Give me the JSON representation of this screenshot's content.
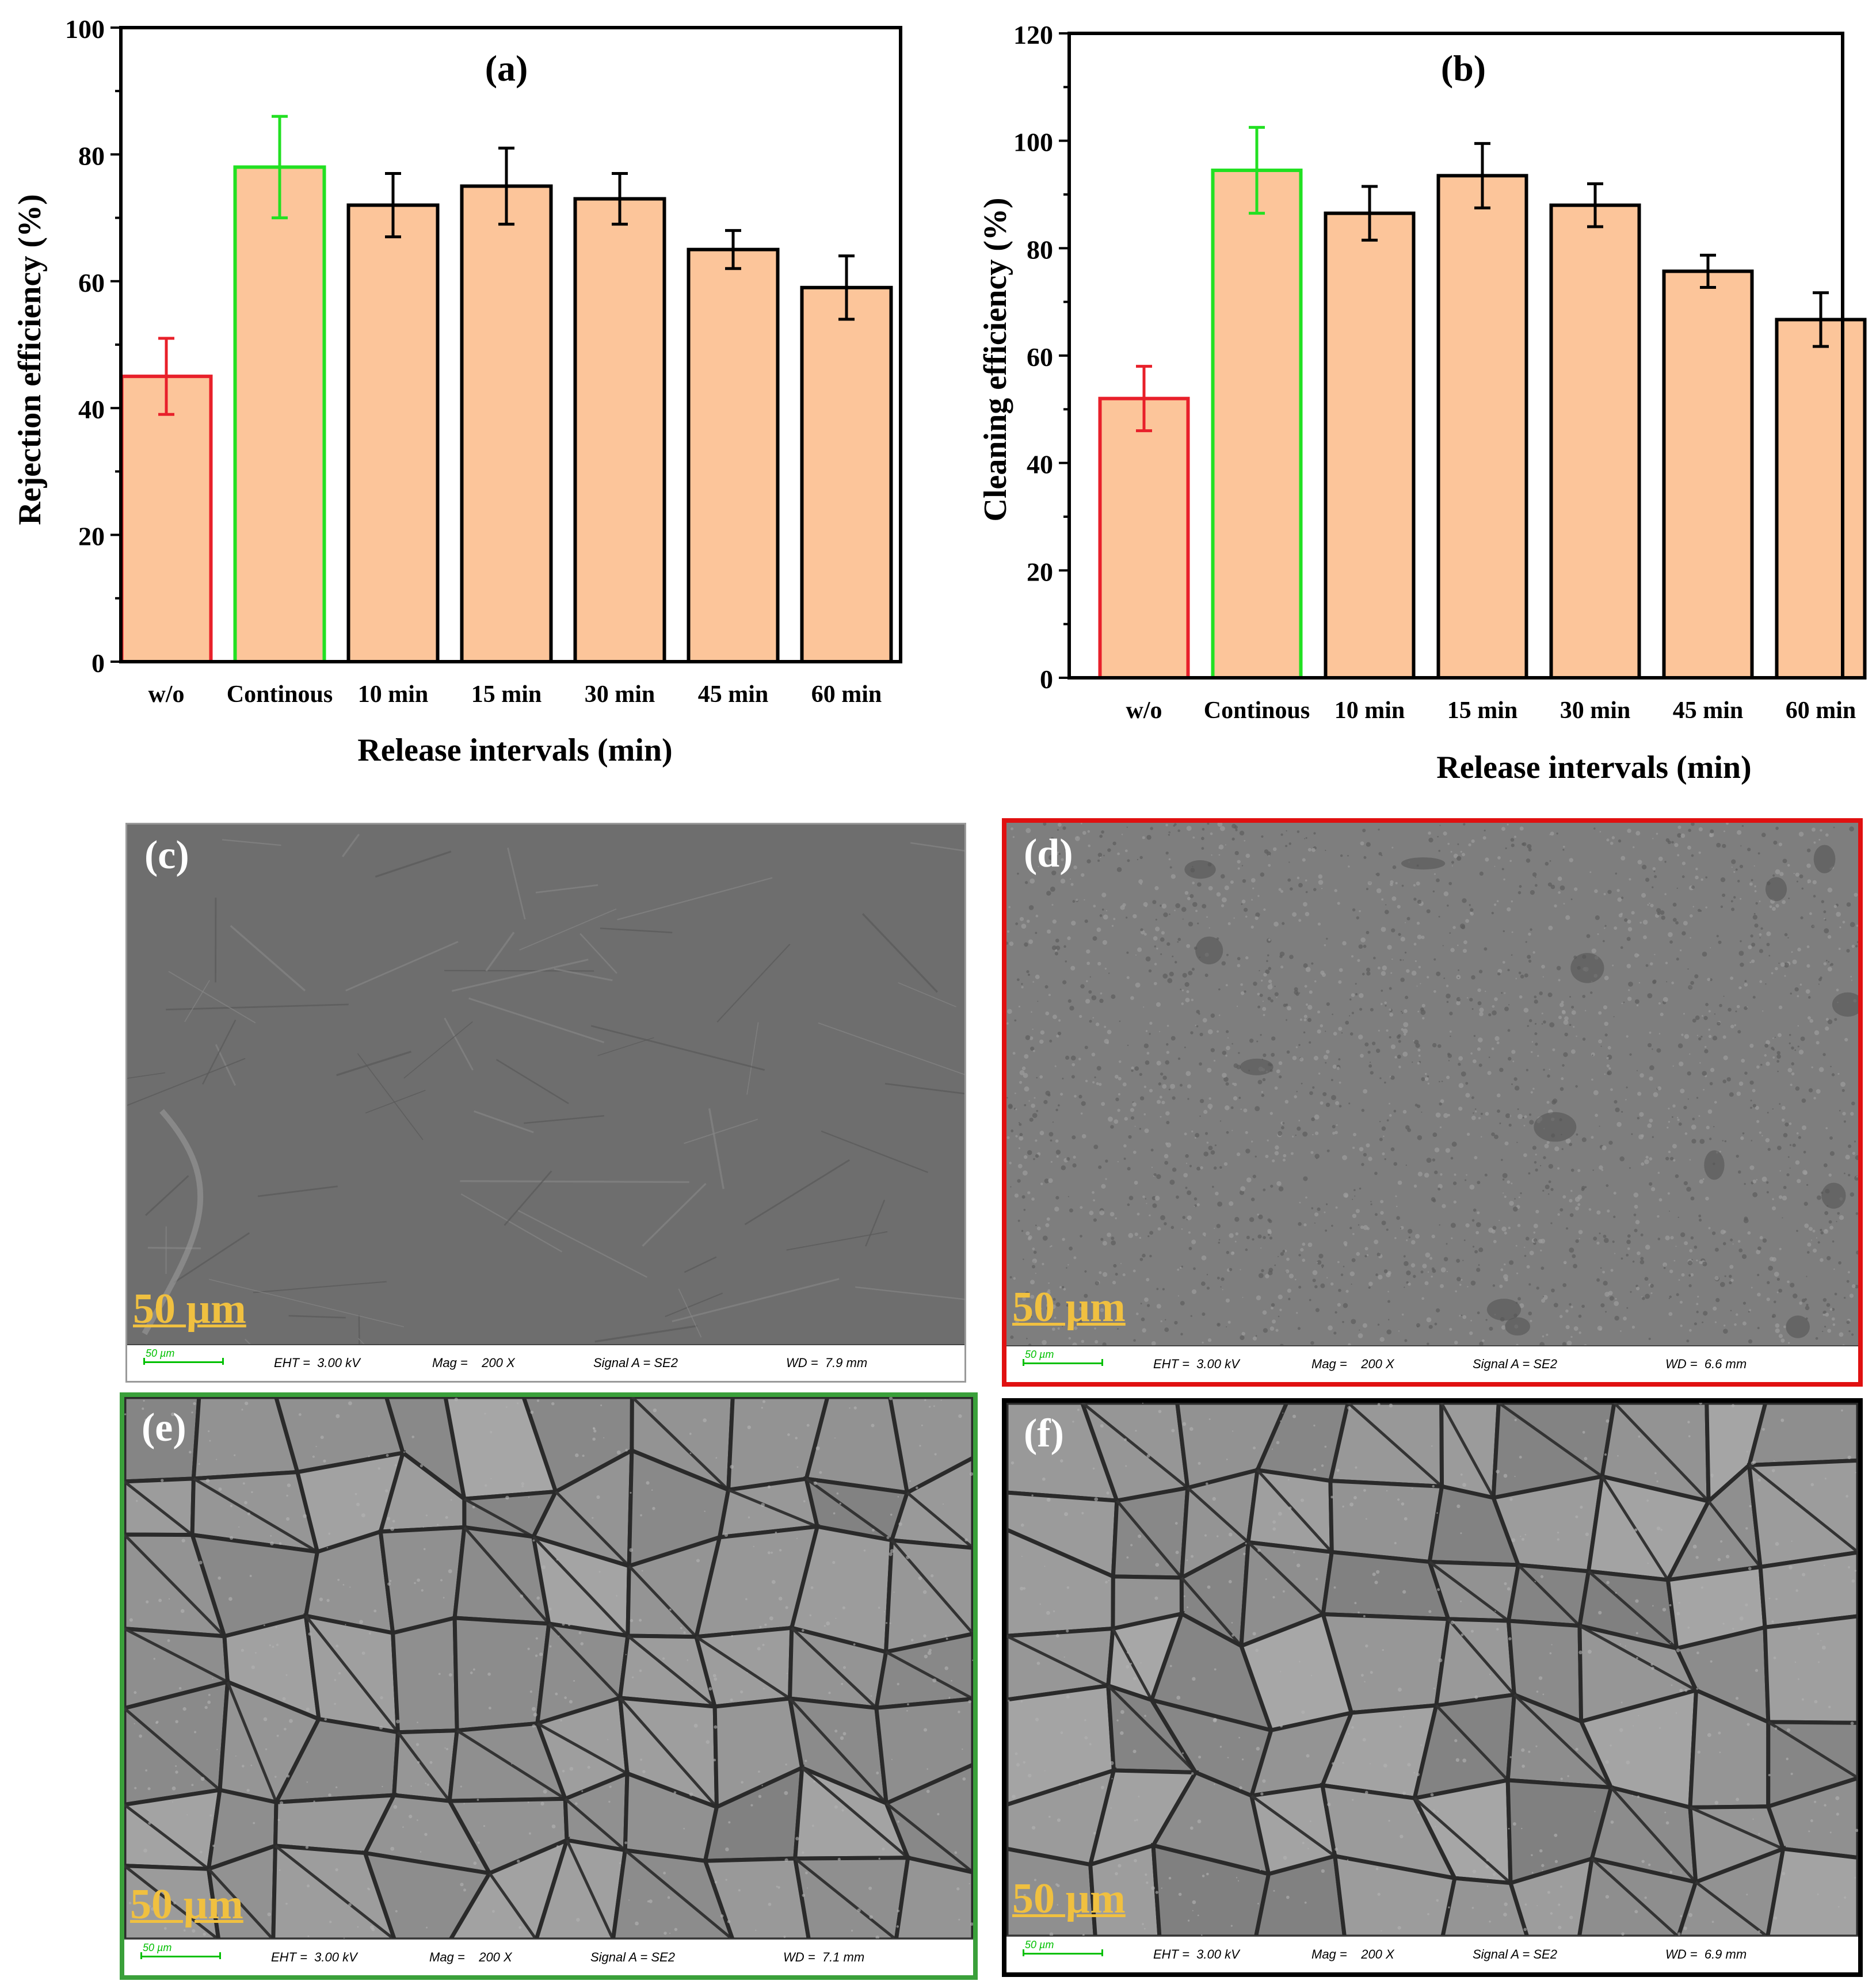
{
  "charts": [
    {
      "panel_label": "(a)",
      "ylabel": "Rejection efficiency (%)",
      "xlabel": "Release intervals (min)",
      "yticks": [
        "0",
        "20",
        "40",
        "60",
        "80",
        "100"
      ]
    },
    {
      "panel_label": "(b)",
      "ylabel": "Cleaning efficiency (%)",
      "xlabel": "Release intervals (min)",
      "yticks": [
        "0",
        "20",
        "40",
        "60",
        "80",
        "100",
        "120"
      ]
    }
  ],
  "chart_data": [
    {
      "type": "bar",
      "title": "(a)",
      "xlabel": "Release intervals (min)",
      "ylabel": "Rejection efficiency (%)",
      "categories": [
        "w/o",
        "Continous",
        "10 min",
        "15 min",
        "30 min",
        "45 min",
        "60 min"
      ],
      "values": [
        45,
        78,
        72,
        75,
        73,
        65,
        59
      ],
      "errors": [
        6,
        8,
        5,
        6,
        4,
        3,
        5
      ],
      "ylim": [
        0,
        100
      ],
      "bar_fill": "#fcc59a",
      "edge_colors": [
        "#e8202a",
        "#22e022",
        "#000000",
        "#000000",
        "#000000",
        "#000000",
        "#000000"
      ],
      "grid": false
    },
    {
      "type": "bar",
      "title": "(b)",
      "xlabel": "Release intervals (min)",
      "ylabel": "Cleaning efficiency (%)",
      "categories": [
        "w/o",
        "Continous",
        "10 min",
        "15 min",
        "30 min",
        "45 min",
        "60 min"
      ],
      "values": [
        52,
        94.5,
        86.5,
        93.5,
        88,
        75.7,
        66.7
      ],
      "errors": [
        6,
        8,
        5,
        6,
        4,
        3,
        5
      ],
      "ylim": [
        0,
        120
      ],
      "bar_fill": "#fcc59a",
      "edge_colors": [
        "#e8202a",
        "#22e022",
        "#000000",
        "#000000",
        "#000000",
        "#000000",
        "#000000"
      ],
      "grid": false
    }
  ],
  "sem_panels": [
    {
      "label": "(c)",
      "scale": "50 µm",
      "bar_label": "50 µm",
      "eht": "EHT =  3.00 kV",
      "mag": "Mag =    200 X",
      "signal": "Signal A = SE2",
      "wd": "WD =  7.9 mm",
      "frame_color": "#9a9a9a",
      "texture": "smooth"
    },
    {
      "label": "(d)",
      "scale": "50 µm",
      "bar_label": "50 µm",
      "eht": "EHT =  3.00 kV",
      "mag": "Mag =    200 X",
      "signal": "Signal A = SE2",
      "wd": "WD =  6.6 mm",
      "frame_color": "#e01010",
      "texture": "grainy"
    },
    {
      "label": "(e)",
      "scale": "50 µm",
      "bar_label": "50 µm",
      "eht": "EHT =  3.00 kV",
      "mag": "Mag =    200 X",
      "signal": "Signal A = SE2",
      "wd": "WD =  7.1 mm",
      "frame_color": "#3aa03a",
      "texture": "cracked"
    },
    {
      "label": "(f)",
      "scale": "50 µm",
      "bar_label": "50 µm",
      "eht": "EHT =  3.00 kV",
      "mag": "Mag =    200 X",
      "signal": "Signal A = SE2",
      "wd": "WD =  6.9 mm",
      "frame_color": "#000000",
      "texture": "cracked"
    }
  ]
}
